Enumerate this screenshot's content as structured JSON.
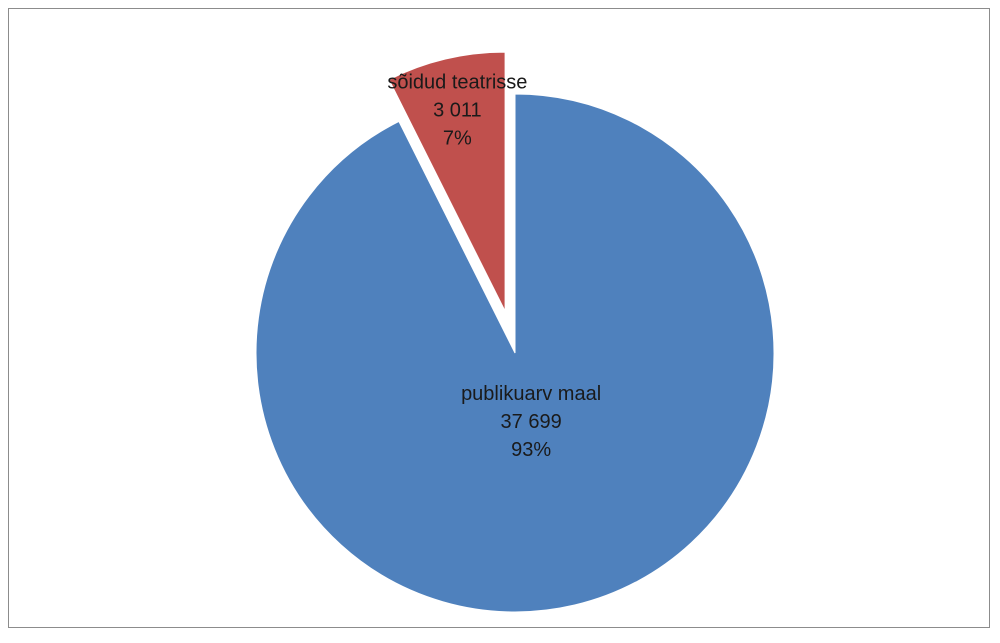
{
  "chart_data": {
    "type": "pie",
    "title": "",
    "slices": [
      {
        "label": "publikuarv maal",
        "value": 37699,
        "value_text": "37 699",
        "percent_text": "93%",
        "color": "#4f81bd",
        "exploded": false
      },
      {
        "label": "sõidud teatrisse",
        "value": 3011,
        "value_text": "3 011",
        "percent_text": "7%",
        "color": "#c0504d",
        "exploded": true
      }
    ],
    "start_angle_deg": 0,
    "direction": "clockwise",
    "legend": "none",
    "data_labels": "inside"
  }
}
